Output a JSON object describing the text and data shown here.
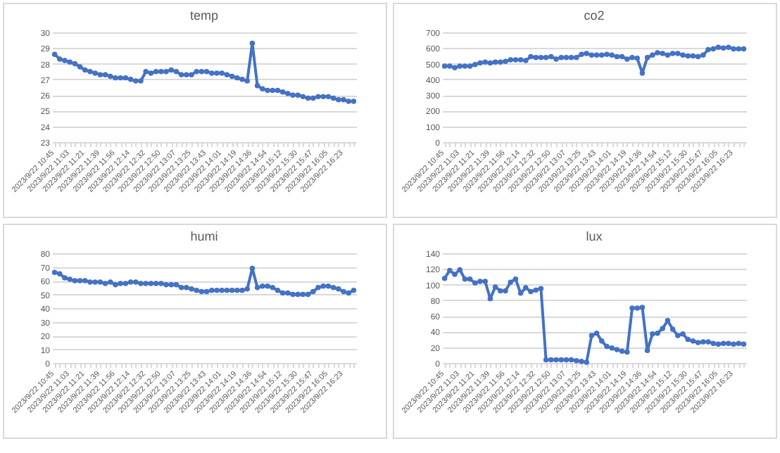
{
  "chart_data": [
    {
      "type": "line",
      "title": "temp",
      "categories": [
        "2023/9/22 10:45",
        null,
        null,
        "2023/9/22 11:03",
        null,
        null,
        "2023/9/22 11:21",
        null,
        null,
        "2023/9/22 11:39",
        null,
        null,
        "2023/9/22 11:56",
        null,
        null,
        "2023/9/22 12:14",
        null,
        null,
        "2023/9/22 12:32",
        null,
        null,
        "2023/9/22 12:50",
        null,
        null,
        "2023/9/22 13:07",
        null,
        null,
        "2023/9/22 13:25",
        null,
        null,
        "2023/9/22 13:43",
        null,
        null,
        "2023/9/22 14:01",
        null,
        null,
        "2023/9/22 14:19",
        null,
        null,
        "2023/9/22 14:36",
        null,
        null,
        "2023/9/22 14:54",
        null,
        null,
        "2023/9/22 15:12",
        null,
        null,
        "2023/9/22 15:30",
        null,
        null,
        "2023/9/22 15:47",
        null,
        null,
        "2023/9/22 16:05",
        null,
        null,
        "2023/9/22 16:23",
        null,
        null
      ],
      "series": [
        {
          "color": "#4472c4",
          "values": [
            28.6,
            28.3,
            28.2,
            28.1,
            28.0,
            27.8,
            27.6,
            27.5,
            27.4,
            27.3,
            27.3,
            27.2,
            27.1,
            27.1,
            27.1,
            27.0,
            26.9,
            26.9,
            27.5,
            27.4,
            27.5,
            27.5,
            27.5,
            27.6,
            27.5,
            27.3,
            27.3,
            27.3,
            27.5,
            27.5,
            27.5,
            27.4,
            27.4,
            27.4,
            27.3,
            27.2,
            27.1,
            27.0,
            26.9,
            29.3,
            26.6,
            26.4,
            26.3,
            26.3,
            26.3,
            26.2,
            26.1,
            26.0,
            26.0,
            25.9,
            25.8,
            25.8,
            25.9,
            25.9,
            25.9,
            25.8,
            25.7,
            25.7,
            25.6,
            25.6
          ]
        }
      ],
      "ylim": [
        23,
        30
      ],
      "yticks": [
        23,
        24,
        25,
        26,
        27,
        28,
        29,
        30
      ],
      "grid": "y",
      "marker": "circle"
    },
    {
      "type": "line",
      "title": "co2",
      "categories": [
        "2023/9/22 10:45",
        null,
        null,
        "2023/9/22 11:03",
        null,
        null,
        "2023/9/22 11:21",
        null,
        null,
        "2023/9/22 11:39",
        null,
        null,
        "2023/9/22 11:56",
        null,
        null,
        "2023/9/22 12:14",
        null,
        null,
        "2023/9/22 12:32",
        null,
        null,
        "2023/9/22 12:50",
        null,
        null,
        "2023/9/22 13:07",
        null,
        null,
        "2023/9/22 13:25",
        null,
        null,
        "2023/9/22 13:43",
        null,
        null,
        "2023/9/22 14:01",
        null,
        null,
        "2023/9/22 14:19",
        null,
        null,
        "2023/9/22 14:36",
        null,
        null,
        "2023/9/22 14:54",
        null,
        null,
        "2023/9/22 15:12",
        null,
        null,
        "2023/9/22 15:30",
        null,
        null,
        "2023/9/22 15:47",
        null,
        null,
        "2023/9/22 16:05",
        null,
        null,
        "2023/9/22 16:23",
        null,
        null
      ],
      "series": [
        {
          "color": "#4472c4",
          "values": [
            485,
            485,
            475,
            485,
            485,
            485,
            495,
            505,
            510,
            505,
            510,
            510,
            515,
            525,
            525,
            525,
            520,
            545,
            540,
            540,
            540,
            545,
            530,
            540,
            540,
            540,
            540,
            560,
            565,
            555,
            555,
            555,
            560,
            555,
            545,
            545,
            530,
            540,
            535,
            440,
            540,
            555,
            570,
            565,
            555,
            565,
            565,
            555,
            550,
            550,
            545,
            555,
            590,
            595,
            605,
            600,
            605,
            595,
            595,
            595
          ]
        }
      ],
      "ylim": [
        0,
        700
      ],
      "yticks": [
        0,
        100,
        200,
        300,
        400,
        500,
        600,
        700
      ],
      "grid": "y",
      "marker": "circle"
    },
    {
      "type": "line",
      "title": "humi",
      "categories": [
        "2023/9/22 10:45",
        null,
        null,
        "2023/9/22 11:03",
        null,
        null,
        "2023/9/22 11:21",
        null,
        null,
        "2023/9/22 11:39",
        null,
        null,
        "2023/9/22 11:56",
        null,
        null,
        "2023/9/22 12:14",
        null,
        null,
        "2023/9/22 12:32",
        null,
        null,
        "2023/9/22 12:50",
        null,
        null,
        "2023/9/22 13:07",
        null,
        null,
        "2023/9/22 13:25",
        null,
        null,
        "2023/9/22 13:43",
        null,
        null,
        "2023/9/22 14:01",
        null,
        null,
        "2023/9/22 14:19",
        null,
        null,
        "2023/9/22 14:36",
        null,
        null,
        "2023/9/22 14:54",
        null,
        null,
        "2023/9/22 15:12",
        null,
        null,
        "2023/9/22 15:30",
        null,
        null,
        "2023/9/22 15:47",
        null,
        null,
        "2023/9/22 16:05",
        null,
        null,
        "2023/9/22 16:23",
        null,
        null
      ],
      "series": [
        {
          "color": "#4472c4",
          "values": [
            66,
            65,
            62,
            61,
            60,
            60,
            60,
            59,
            59,
            59,
            58,
            59,
            57,
            58,
            58,
            59,
            59,
            58,
            58,
            58,
            58,
            58,
            57,
            57,
            57,
            55,
            55,
            54,
            53,
            52,
            52,
            53,
            53,
            53,
            53,
            53,
            53,
            53,
            54,
            69,
            55,
            56,
            56,
            55,
            53,
            51,
            51,
            50,
            50,
            50,
            50,
            52,
            55,
            56,
            56,
            55,
            54,
            52,
            51,
            53
          ]
        }
      ],
      "ylim": [
        0,
        80
      ],
      "yticks": [
        0,
        10,
        20,
        30,
        40,
        50,
        60,
        70,
        80
      ],
      "grid": "y",
      "marker": "circle"
    },
    {
      "type": "line",
      "title": "lux",
      "categories": [
        "2023/9/22 10:45",
        null,
        null,
        "2023/9/22 11:03",
        null,
        null,
        "2023/9/22 11:21",
        null,
        null,
        "2023/9/22 11:39",
        null,
        null,
        "2023/9/22 11:56",
        null,
        null,
        "2023/9/22 12:14",
        null,
        null,
        "2023/9/22 12:32",
        null,
        null,
        "2023/9/22 12:50",
        null,
        null,
        "2023/9/22 13:07",
        null,
        null,
        "2023/9/22 13:25",
        null,
        null,
        "2023/9/22 13:43",
        null,
        null,
        "2023/9/22 14:01",
        null,
        null,
        "2023/9/22 14:19",
        null,
        null,
        "2023/9/22 14:36",
        null,
        null,
        "2023/9/22 14:54",
        null,
        null,
        "2023/9/22 15:12",
        null,
        null,
        "2023/9/22 15:30",
        null,
        null,
        "2023/9/22 15:47",
        null,
        null,
        "2023/9/22 16:05",
        null,
        null,
        "2023/9/22 16:23",
        null,
        null
      ],
      "series": [
        {
          "color": "#4472c4",
          "values": [
            108,
            118,
            113,
            119,
            107,
            107,
            102,
            104,
            104,
            82,
            97,
            92,
            92,
            103,
            107,
            89,
            96,
            91,
            93,
            95,
            4,
            4,
            4,
            4,
            4,
            4,
            3,
            2,
            1,
            35,
            38,
            28,
            21,
            19,
            17,
            15,
            14,
            70,
            70,
            71,
            16,
            37,
            38,
            44,
            54,
            43,
            35,
            37,
            30,
            28,
            26,
            27,
            27,
            25,
            24,
            25,
            25,
            24,
            25,
            24
          ]
        }
      ],
      "ylim": [
        0,
        140
      ],
      "yticks": [
        0,
        20,
        40,
        60,
        80,
        100,
        120,
        140
      ],
      "grid": "y",
      "marker": "circle"
    }
  ]
}
